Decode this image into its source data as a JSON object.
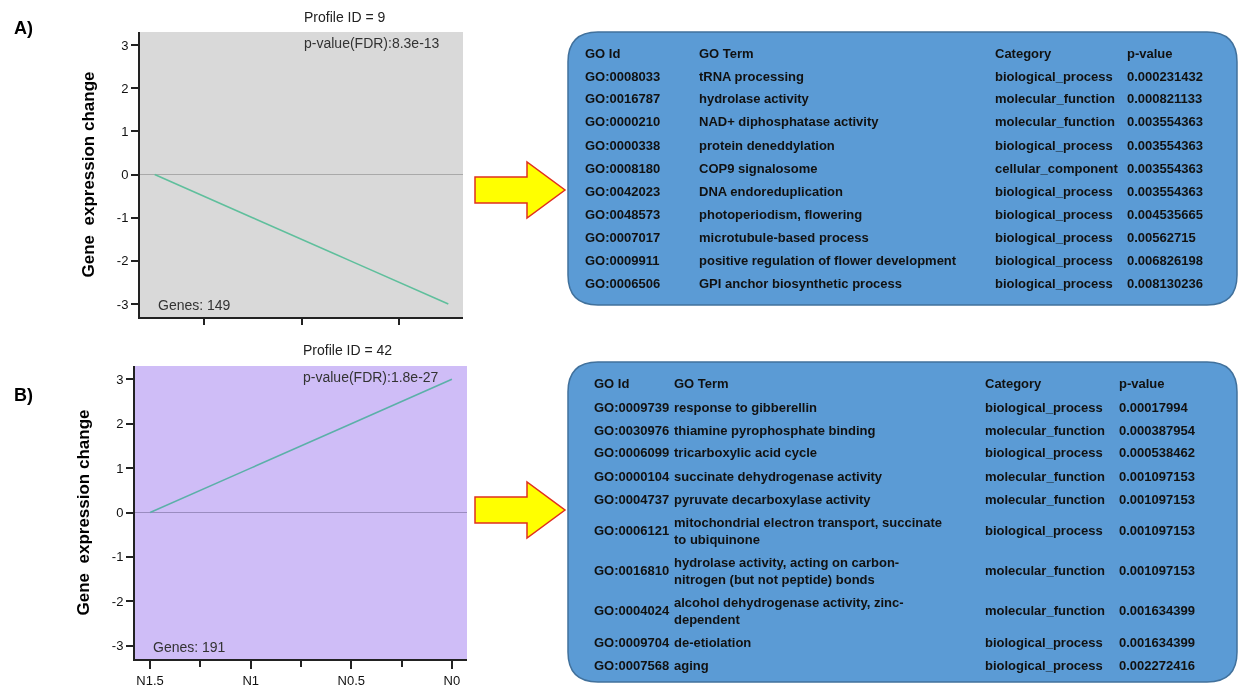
{
  "chart_data": [
    {
      "type": "line",
      "title": "Profile ID = 9",
      "subtitle": "p-value(FDR):8.3e-13",
      "ylabel": "Gene  expression change",
      "categories": [
        null,
        null,
        null,
        null
      ],
      "series": [
        {
          "color": "#5fbf9c",
          "values": [
            0,
            -1,
            -2,
            -3
          ]
        }
      ],
      "ylim": [
        -3.3,
        3.3
      ],
      "yticks": [
        -3,
        -2,
        -1,
        0,
        1,
        2,
        3
      ],
      "grid": false,
      "marker": "none",
      "line_style": "solid",
      "ref_lines": [
        {
          "axis": "y",
          "value": 0,
          "color": "#a9a9a9"
        }
      ],
      "annotations": [
        "A)",
        "Genes: 149"
      ]
    },
    {
      "type": "other",
      "categories": [
        "GO Id",
        "GO Term",
        "Category",
        "p-value"
      ],
      "annotations": [
        "GO:0008033",
        "tRNA processing",
        "biological_process",
        "0.000231432",
        "GO:0016787",
        "hydrolase activity",
        "molecular_function",
        "0.000821133",
        "GO:0000210",
        "NAD+ diphosphatase activity",
        "molecular_function",
        "0.003554363",
        "GO:0000338",
        "protein deneddylation",
        "biological_process",
        "0.003554363",
        "GO:0008180",
        "COP9 signalosome",
        "cellular_component",
        "0.003554363",
        "GO:0042023",
        "DNA endoreduplication",
        "biological_process",
        "0.003554363",
        "GO:0048573",
        "photoperiodism, flowering",
        "biological_process",
        "0.004535665",
        "GO:0007017",
        "microtubule-based process",
        "biological_process",
        "0.00562715",
        "GO:0009911",
        "positive regulation of flower development",
        "biological_process",
        "0.006826198",
        "GO:0006506",
        "GPI anchor biosynthetic process",
        "biological_process",
        "0.008130236"
      ]
    },
    {
      "type": "line",
      "title": "Profile ID = 42",
      "subtitle": "p-value(FDR):1.8e-27",
      "ylabel": "Gene  expression change",
      "categories": [
        "N1.5",
        "N1",
        "N0.5",
        "N0"
      ],
      "series": [
        {
          "color": "#5bb0a8",
          "values": [
            0,
            1,
            2,
            3
          ]
        }
      ],
      "ylim": [
        -3.3,
        3.3
      ],
      "yticks": [
        -3,
        -2,
        -1,
        0,
        1,
        2,
        3
      ],
      "grid": false,
      "marker": "none",
      "line_style": "solid",
      "ref_lines": [
        {
          "axis": "y",
          "value": 0,
          "color": "#9a8cc0"
        }
      ],
      "annotations": [
        "B)",
        "Genes: 191"
      ]
    },
    {
      "type": "other",
      "categories": [
        "GO Id",
        "GO Term",
        "Category",
        "p-value"
      ],
      "annotations": [
        "GO:0009739",
        "response to gibberellin",
        "biological_process",
        "0.00017994",
        "GO:0030976",
        "thiamine pyrophosphate binding",
        "molecular_function",
        "0.000387954",
        "GO:0006099",
        "tricarboxylic acid cycle",
        "biological_process",
        "0.000538462",
        "GO:0000104",
        "succinate dehydrogenase activity",
        "molecular_function",
        "0.001097153",
        "GO:0004737",
        "pyruvate decarboxylase activity",
        "molecular_function",
        "0.001097153",
        "GO:0006121",
        "mitochondrial electron transport, succinate to ubiquinone",
        "biological_process",
        "0.001097153",
        "GO:0016810",
        "hydrolase activity, acting on carbon-nitrogen (but not peptide) bonds",
        "molecular_function",
        "0.001097153",
        "GO:0004024",
        "alcohol dehydrogenase activity, zinc-dependent",
        "molecular_function",
        "0.001634399",
        "GO:0009704",
        "de-etiolation",
        "biological_process",
        "0.001634399",
        "GO:0007568",
        "aging",
        "biological_process",
        "0.002272416"
      ]
    }
  ]
}
